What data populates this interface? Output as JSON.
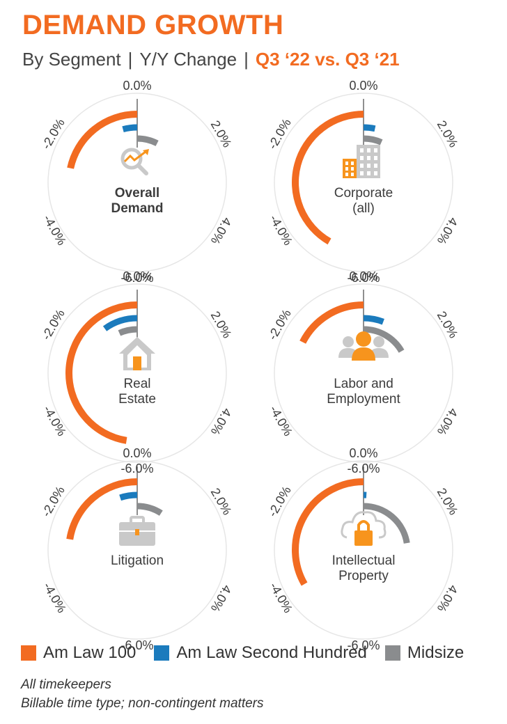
{
  "header": {
    "title": "DEMAND GROWTH",
    "subtitle_parts": [
      "By Segment",
      "|",
      "Y/Y Change",
      "|"
    ],
    "subtitle_highlight": "Q3 ‘22 vs. Q3 ‘21"
  },
  "colors": {
    "am_law_100": "#f26b21",
    "am_law_second_hundred": "#1b7bbd",
    "midsize": "#8a8c8e",
    "ring": "#e6e6e6",
    "icon_gray": "#c9c9c9",
    "icon_orange": "#f7941d"
  },
  "chart_data": {
    "type": "radial-bar",
    "axis": {
      "tick_labels": [
        "0.0%",
        "2.0%",
        "4.0%",
        "-6.0%",
        "-4.0%",
        "-2.0%"
      ],
      "tick_values": [
        0,
        2,
        4,
        -6,
        -4,
        -2
      ]
    },
    "series_names": [
      "Am Law 100",
      "Am Law Second Hundred",
      "Midsize"
    ],
    "panels": [
      {
        "label_lines": [
          "Overall",
          "Demand"
        ],
        "bold": true,
        "icon": "chart-magnifier-icon",
        "values": {
          "Am Law 100": -2.6,
          "Am Law Second Hundred": -0.5,
          "Midsize": 0.9
        }
      },
      {
        "label_lines": [
          "Corporate",
          "(all)"
        ],
        "bold": false,
        "icon": "office-building-icon",
        "values": {
          "Am Law 100": -5.0,
          "Am Law Second Hundred": 0.4,
          "Midsize": 0.8
        }
      },
      {
        "label_lines": [
          "Real",
          "Estate"
        ],
        "bold": false,
        "icon": "house-icon",
        "values": {
          "Am Law 100": -5.7,
          "Am Law Second Hundred": -1.2,
          "Midsize": -0.8
        }
      },
      {
        "label_lines": [
          "Labor and",
          "Employment"
        ],
        "bold": false,
        "icon": "people-group-icon",
        "values": {
          "Am Law 100": -2.1,
          "Am Law Second Hundred": 0.7,
          "Midsize": 2.0
        }
      },
      {
        "label_lines": [
          "Litigation"
        ],
        "bold": false,
        "icon": "briefcase-icon",
        "values": {
          "Am Law 100": -2.7,
          "Am Law Second Hundred": -0.6,
          "Midsize": 1.1
        }
      },
      {
        "label_lines": [
          "Intellectual",
          "Property"
        ],
        "bold": false,
        "icon": "cloud-lock-icon",
        "values": {
          "Am Law 100": -4.0,
          "Am Law Second Hundred": 0.1,
          "Midsize": 2.7
        }
      }
    ]
  },
  "legend": [
    {
      "label": "Am Law 100",
      "color": "#f26b21"
    },
    {
      "label": "Am Law Second Hundred",
      "color": "#1b7bbd"
    },
    {
      "label": "Midsize",
      "color": "#8a8c8e"
    }
  ],
  "notes": [
    "All timekeepers",
    "Billable time type; non-contingent matters"
  ]
}
